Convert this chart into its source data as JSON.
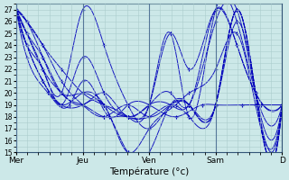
{
  "xlabel": "Température (°c)",
  "ylim": [
    15,
    27
  ],
  "yticks": [
    15,
    16,
    17,
    18,
    19,
    20,
    21,
    22,
    23,
    24,
    25,
    26,
    27
  ],
  "background_color": "#cce8e8",
  "grid_color": "#aacccc",
  "line_color": "#0000bb",
  "days": [
    "Mer",
    "Jeu",
    "Ven",
    "Sam",
    "D"
  ],
  "day_positions": [
    0,
    0.25,
    0.5,
    0.75,
    1.0
  ],
  "series": [
    {
      "x": [
        0.0,
        0.04,
        0.1,
        0.17,
        0.25,
        0.33,
        0.42,
        0.5,
        0.58,
        0.65,
        0.75,
        0.83,
        0.9,
        1.0
      ],
      "y": [
        27,
        26,
        24,
        22,
        20,
        19,
        18,
        19,
        25,
        18,
        27,
        26,
        20,
        19
      ]
    },
    {
      "x": [
        0.0,
        0.04,
        0.1,
        0.17,
        0.25,
        0.33,
        0.42,
        0.5,
        0.58,
        0.65,
        0.75,
        0.83,
        0.9,
        1.0
      ],
      "y": [
        27,
        25,
        22,
        20,
        27,
        24,
        19,
        17,
        19,
        19,
        19,
        27,
        20,
        19
      ]
    },
    {
      "x": [
        0.0,
        0.04,
        0.1,
        0.17,
        0.25,
        0.33,
        0.42,
        0.5,
        0.58,
        0.65,
        0.75,
        0.83,
        0.9,
        1.0
      ],
      "y": [
        27,
        24,
        21,
        19,
        20,
        19,
        15,
        15,
        19,
        19,
        19,
        27,
        20,
        19
      ]
    },
    {
      "x": [
        0.0,
        0.04,
        0.1,
        0.17,
        0.25,
        0.33,
        0.42,
        0.5,
        0.58,
        0.65,
        0.75,
        0.83,
        0.9,
        1.0
      ],
      "y": [
        27,
        25,
        23,
        20,
        19,
        18,
        18,
        19,
        25,
        22,
        27,
        24,
        20,
        19
      ]
    },
    {
      "x": [
        0.0,
        0.04,
        0.1,
        0.17,
        0.25,
        0.33,
        0.42,
        0.5,
        0.58,
        0.65,
        0.75,
        0.83,
        0.9,
        1.0
      ],
      "y": [
        27,
        24,
        22,
        19,
        23,
        20,
        18,
        18,
        19,
        18,
        19,
        27,
        20,
        19
      ]
    },
    {
      "x": [
        0.0,
        0.04,
        0.1,
        0.17,
        0.25,
        0.33,
        0.42,
        0.5,
        0.58,
        0.65,
        0.75,
        0.83,
        0.9,
        1.0
      ],
      "y": [
        27,
        26,
        23,
        20,
        20,
        19,
        18,
        19,
        20,
        19,
        27,
        24,
        20,
        19
      ]
    },
    {
      "x": [
        0.0,
        0.04,
        0.1,
        0.17,
        0.25,
        0.33,
        0.42,
        0.5,
        0.58,
        0.65,
        0.75,
        0.83,
        0.9,
        1.0
      ],
      "y": [
        27,
        25,
        22,
        20,
        19,
        20,
        18,
        19,
        19,
        19,
        26,
        27,
        20,
        19
      ]
    },
    {
      "x": [
        0.0,
        0.04,
        0.1,
        0.17,
        0.25,
        0.33,
        0.42,
        0.5,
        0.58,
        0.65,
        0.75,
        0.83,
        0.9,
        1.0
      ],
      "y": [
        27,
        26,
        24,
        21,
        19,
        18,
        19,
        18,
        19,
        19,
        19,
        26,
        20,
        19
      ]
    },
    {
      "x": [
        0.0,
        0.04,
        0.1,
        0.17,
        0.25,
        0.33,
        0.42,
        0.5,
        0.6,
        0.65,
        0.75,
        0.83,
        0.9,
        1.0
      ],
      "y": [
        27,
        24,
        21,
        19,
        19,
        19,
        15,
        17,
        19,
        20,
        22,
        25,
        19,
        19
      ]
    },
    {
      "x": [
        0.0,
        0.04,
        0.12,
        0.2,
        0.25,
        0.35,
        0.42,
        0.5,
        0.6,
        0.7,
        0.75,
        0.85,
        0.92,
        1.0
      ],
      "y": [
        27,
        23,
        20,
        19,
        21,
        18,
        19,
        19,
        18,
        19,
        19,
        19,
        19,
        19
      ]
    }
  ]
}
